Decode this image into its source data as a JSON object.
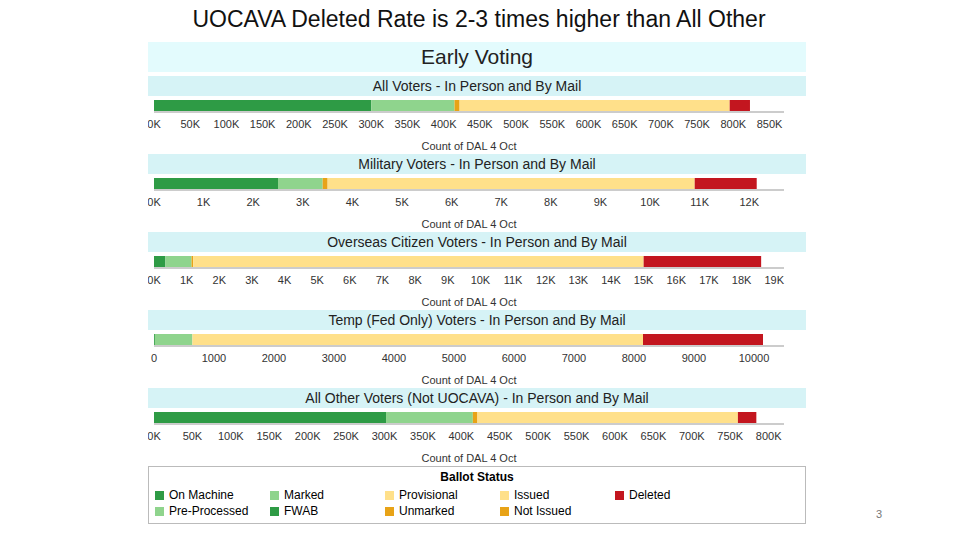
{
  "title": "UOCAVA Deleted Rate is 2-3 times higher than All Other",
  "subtitle": "Early Voting",
  "legend_title": "Ballot Status",
  "page_number": "3",
  "chart_data": [
    {
      "type": "bar",
      "orientation": "horizontal",
      "stacked": true,
      "title": "All Voters - In Person and By Mail",
      "xlabel": "Count of DAL 4 Oct",
      "xlim": [
        0,
        870000
      ],
      "xticks": [
        {
          "value": 0,
          "label": "0K"
        },
        {
          "value": 50000,
          "label": "50K"
        },
        {
          "value": 100000,
          "label": "100K"
        },
        {
          "value": 150000,
          "label": "150K"
        },
        {
          "value": 200000,
          "label": "200K"
        },
        {
          "value": 250000,
          "label": "250K"
        },
        {
          "value": 300000,
          "label": "300K"
        },
        {
          "value": 350000,
          "label": "350K"
        },
        {
          "value": 400000,
          "label": "400K"
        },
        {
          "value": 450000,
          "label": "450K"
        },
        {
          "value": 500000,
          "label": "500K"
        },
        {
          "value": 550000,
          "label": "550K"
        },
        {
          "value": 600000,
          "label": "600K"
        },
        {
          "value": 650000,
          "label": "650K"
        },
        {
          "value": 700000,
          "label": "700K"
        },
        {
          "value": 750000,
          "label": "750K"
        },
        {
          "value": 800000,
          "label": "800K"
        },
        {
          "value": 850000,
          "label": "850K"
        }
      ],
      "series": [
        {
          "name": "On Machine",
          "color": "#2e9b45",
          "values": [
            300000
          ]
        },
        {
          "name": "Pre-Processed",
          "color": "#8fd48d",
          "values": [
            0
          ]
        },
        {
          "name": "Marked",
          "color": "#8fd48d",
          "values": [
            115000
          ]
        },
        {
          "name": "FWAB",
          "color": "#2e9b45",
          "values": [
            0
          ]
        },
        {
          "name": "Provisional",
          "color": "#ffe08a",
          "values": [
            0
          ]
        },
        {
          "name": "Unmarked",
          "color": "#e8a317",
          "values": [
            7000
          ]
        },
        {
          "name": "Issued",
          "color": "#ffe08a",
          "values": [
            373000
          ]
        },
        {
          "name": "Not Issued",
          "color": "#e8a317",
          "values": [
            0
          ]
        },
        {
          "name": "Deleted",
          "color": "#c3161f",
          "values": [
            28000
          ]
        }
      ]
    },
    {
      "type": "bar",
      "orientation": "horizontal",
      "stacked": true,
      "title": "Military Voters - In Person and By Mail",
      "xlabel": "Count of DAL 4 Oct",
      "xlim": [
        0,
        12700
      ],
      "xticks": [
        {
          "value": 0,
          "label": "0K"
        },
        {
          "value": 1000,
          "label": "1K"
        },
        {
          "value": 2000,
          "label": "2K"
        },
        {
          "value": 3000,
          "label": "3K"
        },
        {
          "value": 4000,
          "label": "4K"
        },
        {
          "value": 5000,
          "label": "5K"
        },
        {
          "value": 6000,
          "label": "6K"
        },
        {
          "value": 7000,
          "label": "7K"
        },
        {
          "value": 8000,
          "label": "8K"
        },
        {
          "value": 9000,
          "label": "9K"
        },
        {
          "value": 10000,
          "label": "10K"
        },
        {
          "value": 11000,
          "label": "11K"
        },
        {
          "value": 12000,
          "label": "12K"
        }
      ],
      "series": [
        {
          "name": "On Machine",
          "color": "#2e9b45",
          "values": [
            2500
          ]
        },
        {
          "name": "Pre-Processed",
          "color": "#8fd48d",
          "values": [
            0
          ]
        },
        {
          "name": "Marked",
          "color": "#8fd48d",
          "values": [
            900
          ]
        },
        {
          "name": "FWAB",
          "color": "#2e9b45",
          "values": [
            0
          ]
        },
        {
          "name": "Provisional",
          "color": "#ffe08a",
          "values": [
            0
          ]
        },
        {
          "name": "Unmarked",
          "color": "#e8a317",
          "values": [
            100
          ]
        },
        {
          "name": "Issued",
          "color": "#ffe08a",
          "values": [
            7400
          ]
        },
        {
          "name": "Not Issued",
          "color": "#e8a317",
          "values": [
            0
          ]
        },
        {
          "name": "Deleted",
          "color": "#c3161f",
          "values": [
            1250
          ]
        }
      ]
    },
    {
      "type": "bar",
      "orientation": "horizontal",
      "stacked": true,
      "title": "Overseas Citizen Voters - In Person and By Mail",
      "xlabel": "Count of DAL 4 Oct",
      "xlim": [
        0,
        19300
      ],
      "xticks": [
        {
          "value": 0,
          "label": "0K"
        },
        {
          "value": 1000,
          "label": "1K"
        },
        {
          "value": 2000,
          "label": "2K"
        },
        {
          "value": 3000,
          "label": "3K"
        },
        {
          "value": 4000,
          "label": "4K"
        },
        {
          "value": 5000,
          "label": "5K"
        },
        {
          "value": 6000,
          "label": "6K"
        },
        {
          "value": 7000,
          "label": "7K"
        },
        {
          "value": 8000,
          "label": "8K"
        },
        {
          "value": 9000,
          "label": "9K"
        },
        {
          "value": 10000,
          "label": "10K"
        },
        {
          "value": 11000,
          "label": "11K"
        },
        {
          "value": 12000,
          "label": "12K"
        },
        {
          "value": 13000,
          "label": "13K"
        },
        {
          "value": 14000,
          "label": "14K"
        },
        {
          "value": 15000,
          "label": "15K"
        },
        {
          "value": 16000,
          "label": "16K"
        },
        {
          "value": 17000,
          "label": "17K"
        },
        {
          "value": 18000,
          "label": "18K"
        },
        {
          "value": 19000,
          "label": "19K"
        }
      ],
      "series": [
        {
          "name": "On Machine",
          "color": "#2e9b45",
          "values": [
            350
          ]
        },
        {
          "name": "Pre-Processed",
          "color": "#8fd48d",
          "values": [
            0
          ]
        },
        {
          "name": "Marked",
          "color": "#8fd48d",
          "values": [
            800
          ]
        },
        {
          "name": "FWAB",
          "color": "#2e9b45",
          "values": [
            0
          ]
        },
        {
          "name": "Provisional",
          "color": "#ffe08a",
          "values": [
            0
          ]
        },
        {
          "name": "Unmarked",
          "color": "#e8a317",
          "values": [
            50
          ]
        },
        {
          "name": "Issued",
          "color": "#ffe08a",
          "values": [
            13800
          ]
        },
        {
          "name": "Not Issued",
          "color": "#e8a317",
          "values": [
            0
          ]
        },
        {
          "name": "Deleted",
          "color": "#c3161f",
          "values": [
            3600
          ]
        }
      ]
    },
    {
      "type": "bar",
      "orientation": "horizontal",
      "stacked": true,
      "title": "Temp (Fed Only) Voters - In Person and By Mail",
      "xlabel": "Count of DAL 4 Oct",
      "xlim": [
        0,
        10500
      ],
      "xticks": [
        0,
        1000,
        2000,
        3000,
        4000,
        5000,
        6000,
        7000,
        8000,
        9000,
        10000
      ],
      "series": [
        {
          "name": "On Machine",
          "color": "#2e9b45",
          "values": [
            15
          ]
        },
        {
          "name": "Pre-Processed",
          "color": "#8fd48d",
          "values": [
            0
          ]
        },
        {
          "name": "Marked",
          "color": "#8fd48d",
          "values": [
            625
          ]
        },
        {
          "name": "FWAB",
          "color": "#2e9b45",
          "values": [
            0
          ]
        },
        {
          "name": "Provisional",
          "color": "#ffe08a",
          "values": [
            0
          ]
        },
        {
          "name": "Unmarked",
          "color": "#e8a317",
          "values": [
            0
          ]
        },
        {
          "name": "Issued",
          "color": "#ffe08a",
          "values": [
            7510
          ]
        },
        {
          "name": "Not Issued",
          "color": "#e8a317",
          "values": [
            0
          ]
        },
        {
          "name": "Deleted",
          "color": "#c3161f",
          "values": [
            2000
          ]
        }
      ]
    },
    {
      "type": "bar",
      "orientation": "horizontal",
      "stacked": true,
      "title": "All Other Voters (Not UOCAVA) - In Person and By Mail",
      "xlabel": "Count of DAL 4 Oct",
      "xlim": [
        0,
        820000
      ],
      "xticks": [
        {
          "value": 0,
          "label": "0K"
        },
        {
          "value": 50000,
          "label": "50K"
        },
        {
          "value": 100000,
          "label": "100K"
        },
        {
          "value": 150000,
          "label": "150K"
        },
        {
          "value": 200000,
          "label": "200K"
        },
        {
          "value": 250000,
          "label": "250K"
        },
        {
          "value": 300000,
          "label": "300K"
        },
        {
          "value": 350000,
          "label": "350K"
        },
        {
          "value": 400000,
          "label": "400K"
        },
        {
          "value": 450000,
          "label": "450K"
        },
        {
          "value": 500000,
          "label": "500K"
        },
        {
          "value": 550000,
          "label": "550K"
        },
        {
          "value": 600000,
          "label": "600K"
        },
        {
          "value": 650000,
          "label": "650K"
        },
        {
          "value": 700000,
          "label": "700K"
        },
        {
          "value": 750000,
          "label": "750K"
        },
        {
          "value": 800000,
          "label": "800K"
        }
      ],
      "series": [
        {
          "name": "On Machine",
          "color": "#2e9b45",
          "values": [
            302000
          ]
        },
        {
          "name": "Pre-Processed",
          "color": "#8fd48d",
          "values": [
            0
          ]
        },
        {
          "name": "Marked",
          "color": "#8fd48d",
          "values": [
            113000
          ]
        },
        {
          "name": "FWAB",
          "color": "#2e9b45",
          "values": [
            0
          ]
        },
        {
          "name": "Provisional",
          "color": "#ffe08a",
          "values": [
            0
          ]
        },
        {
          "name": "Unmarked",
          "color": "#e8a317",
          "values": [
            6000
          ]
        },
        {
          "name": "Issued",
          "color": "#ffe08a",
          "values": [
            339000
          ]
        },
        {
          "name": "Not Issued",
          "color": "#e8a317",
          "values": [
            0
          ]
        },
        {
          "name": "Deleted",
          "color": "#c3161f",
          "values": [
            24000
          ]
        }
      ]
    }
  ]
}
